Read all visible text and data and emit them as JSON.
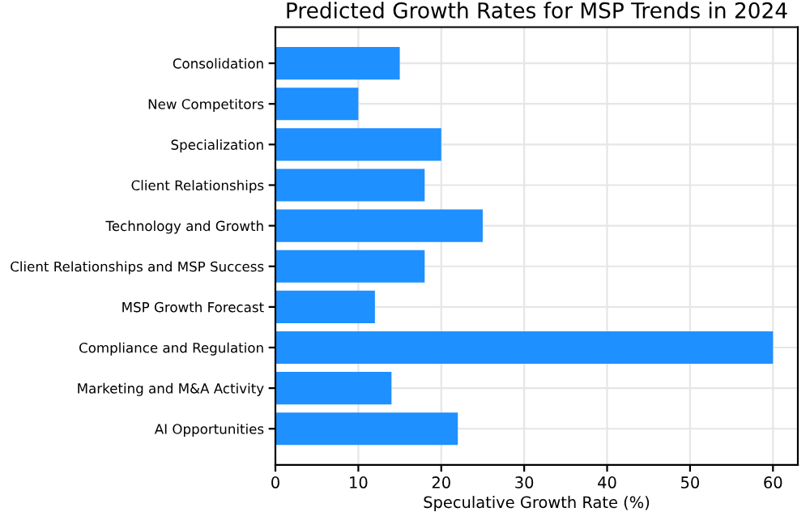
{
  "chart_data": {
    "type": "bar",
    "orientation": "horizontal",
    "title": "Predicted Growth Rates for MSP Trends in 2024",
    "xlabel": "Speculative Growth Rate (%)",
    "categories": [
      "Consolidation",
      "New Competitors",
      "Specialization",
      "Client Relationships",
      "Technology and Growth",
      "Client Relationships and MSP Success",
      "MSP Growth Forecast",
      "Compliance and Regulation",
      "Marketing and M&A Activity",
      "AI Opportunities"
    ],
    "values": [
      15,
      10,
      20,
      18,
      25,
      18,
      12,
      60,
      14,
      22
    ],
    "color": "#1e90ff",
    "xlim": [
      0,
      63
    ],
    "xticks": [
      0,
      10,
      20,
      30,
      40,
      50,
      60
    ],
    "grid": true
  }
}
